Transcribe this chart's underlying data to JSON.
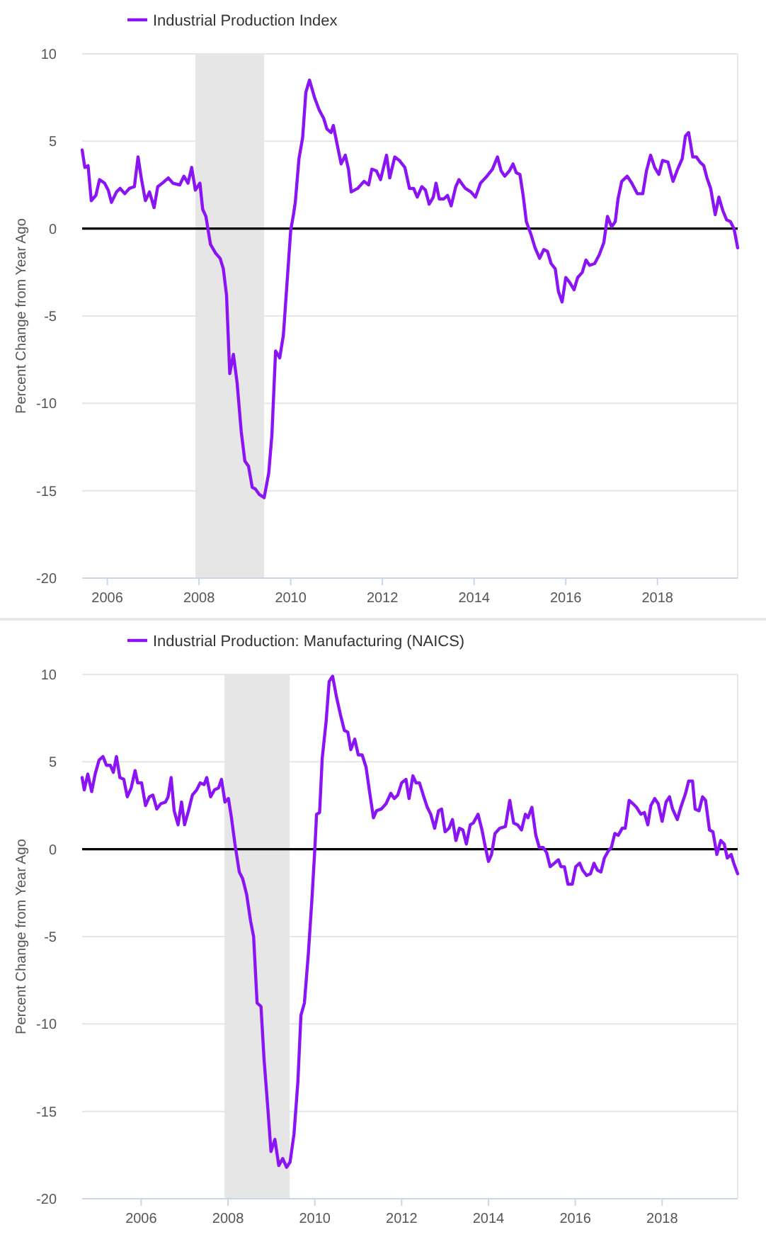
{
  "chart_data": [
    {
      "type": "line",
      "ylabel": "Percent Change from Year Ago",
      "legend": "top",
      "grid": "y",
      "xlim": [
        2005.45,
        2019.75
      ],
      "xticks": [
        2006,
        2008,
        2010,
        2012,
        2014,
        2016,
        2018
      ],
      "ylim": [
        -20,
        10
      ],
      "yticks": [
        -20,
        -15,
        -10,
        -5,
        0,
        5,
        10
      ],
      "ref_lines": [
        {
          "axis": "y",
          "value": 0,
          "color": "#000000"
        }
      ],
      "bands": [
        {
          "axis": "x",
          "from": 2007.92,
          "to": 2009.42,
          "color": "#e6e6e6"
        }
      ],
      "series": [
        {
          "name": "Industrial Production Index",
          "color": "#8b14f5",
          "x": [
            2005.45,
            2005.51,
            2005.58,
            2005.65,
            2005.75,
            2005.83,
            2005.94,
            2006.02,
            2006.09,
            2006.2,
            2006.28,
            2006.38,
            2006.48,
            2006.59,
            2006.67,
            2006.74,
            2006.83,
            2006.92,
            2007.02,
            2007.1,
            2007.2,
            2007.33,
            2007.43,
            2007.58,
            2007.67,
            2007.76,
            2007.84,
            2007.92,
            2008.02,
            2008.08,
            2008.15,
            2008.25,
            2008.36,
            2008.46,
            2008.53,
            2008.6,
            2008.67,
            2008.75,
            2008.83,
            2008.92,
            2009.0,
            2009.08,
            2009.16,
            2009.23,
            2009.31,
            2009.42,
            2009.52,
            2009.59,
            2009.67,
            2009.76,
            2009.84,
            2009.92,
            2010.0,
            2010.06,
            2010.1,
            2010.18,
            2010.26,
            2010.33,
            2010.41,
            2010.52,
            2010.62,
            2010.72,
            2010.79,
            2010.88,
            2010.93,
            2011.03,
            2011.1,
            2011.19,
            2011.26,
            2011.32,
            2011.46,
            2011.6,
            2011.7,
            2011.77,
            2011.87,
            2011.96,
            2012.09,
            2012.16,
            2012.27,
            2012.37,
            2012.49,
            2012.59,
            2012.68,
            2012.76,
            2012.86,
            2012.94,
            2013.02,
            2013.11,
            2013.17,
            2013.24,
            2013.34,
            2013.42,
            2013.5,
            2013.6,
            2013.67,
            2013.81,
            2013.93,
            2014.03,
            2014.14,
            2014.28,
            2014.4,
            2014.51,
            2014.59,
            2014.67,
            2014.77,
            2014.85,
            2014.92,
            2015.0,
            2015.07,
            2015.14,
            2015.25,
            2015.33,
            2015.43,
            2015.52,
            2015.6,
            2015.68,
            2015.77,
            2015.84,
            2015.92,
            2016.0,
            2016.09,
            2016.18,
            2016.26,
            2016.36,
            2016.44,
            2016.52,
            2016.63,
            2016.73,
            2016.83,
            2016.91,
            2017.0,
            2017.08,
            2017.14,
            2017.22,
            2017.34,
            2017.44,
            2017.56,
            2017.68,
            2017.76,
            2017.85,
            2017.94,
            2018.03,
            2018.11,
            2018.23,
            2018.34,
            2018.44,
            2018.54,
            2018.61,
            2018.68,
            2018.77,
            2018.85,
            2018.93,
            2019.01,
            2019.08,
            2019.16,
            2019.26,
            2019.34,
            2019.43,
            2019.51,
            2019.59,
            2019.67,
            2019.75
          ],
          "values": [
            4.5,
            3.5,
            3.6,
            1.6,
            1.9,
            2.8,
            2.6,
            2.2,
            1.5,
            2.1,
            2.3,
            2.0,
            2.3,
            2.4,
            4.1,
            2.9,
            1.6,
            2.1,
            1.2,
            2.4,
            2.6,
            2.9,
            2.6,
            2.5,
            3.0,
            2.6,
            3.5,
            2.2,
            2.6,
            1.1,
            0.7,
            -0.9,
            -1.4,
            -1.7,
            -2.3,
            -3.8,
            -8.3,
            -7.2,
            -8.8,
            -11.6,
            -13.3,
            -13.6,
            -14.8,
            -14.9,
            -15.2,
            -15.4,
            -14.0,
            -11.8,
            -7.0,
            -7.4,
            -6.1,
            -3.1,
            -0.1,
            0.8,
            1.5,
            4.0,
            5.2,
            7.8,
            8.5,
            7.5,
            6.8,
            6.3,
            5.7,
            5.5,
            5.9,
            4.6,
            3.7,
            4.2,
            3.4,
            2.1,
            2.3,
            2.7,
            2.5,
            3.4,
            3.3,
            2.8,
            4.2,
            2.9,
            4.1,
            3.9,
            3.5,
            2.3,
            2.3,
            1.8,
            2.4,
            2.2,
            1.4,
            1.8,
            2.6,
            1.7,
            1.7,
            1.9,
            1.3,
            2.4,
            2.8,
            2.3,
            2.1,
            1.8,
            2.6,
            3.0,
            3.4,
            4.1,
            3.3,
            3.0,
            3.3,
            3.7,
            3.2,
            3.1,
            1.9,
            0.4,
            -0.4,
            -1.1,
            -1.7,
            -1.2,
            -1.3,
            -2.0,
            -2.3,
            -3.6,
            -4.2,
            -2.8,
            -3.1,
            -3.5,
            -2.8,
            -2.5,
            -1.8,
            -2.1,
            -2.0,
            -1.5,
            -0.8,
            0.7,
            0.1,
            0.4,
            1.7,
            2.7,
            3.0,
            2.6,
            2.0,
            2.0,
            3.3,
            4.2,
            3.5,
            3.1,
            3.9,
            3.8,
            2.7,
            3.4,
            4.0,
            5.3,
            5.5,
            4.1,
            4.1,
            3.8,
            3.6,
            2.9,
            2.3,
            0.8,
            1.8,
            1.0,
            0.5,
            0.4,
            0.0,
            -1.1
          ]
        }
      ]
    },
    {
      "type": "line",
      "ylabel": "Percent Change from Year Ago",
      "legend": "top",
      "grid": "y",
      "xlim": [
        2004.64,
        2019.74
      ],
      "xticks": [
        2006,
        2008,
        2010,
        2012,
        2014,
        2016,
        2018
      ],
      "ylim": [
        -20,
        10
      ],
      "yticks": [
        -20,
        -15,
        -10,
        -5,
        0,
        5,
        10
      ],
      "ref_lines": [
        {
          "axis": "y",
          "value": 0,
          "color": "#000000"
        }
      ],
      "bands": [
        {
          "axis": "x",
          "from": 2007.92,
          "to": 2009.42,
          "color": "#e6e6e6"
        }
      ],
      "series": [
        {
          "name": "Industrial Production: Manufacturing (NAICS)",
          "color": "#8b14f5",
          "x": [
            2004.64,
            2004.69,
            2004.77,
            2004.86,
            2004.94,
            2005.03,
            2005.12,
            2005.2,
            2005.29,
            2005.36,
            2005.43,
            2005.51,
            2005.6,
            2005.68,
            2005.77,
            2005.86,
            2005.92,
            2006.01,
            2006.1,
            2006.19,
            2006.27,
            2006.36,
            2006.45,
            2006.56,
            2006.62,
            2006.69,
            2006.76,
            2006.85,
            2006.93,
            2007.0,
            2007.09,
            2007.18,
            2007.28,
            2007.36,
            2007.45,
            2007.51,
            2007.6,
            2007.69,
            2007.78,
            2007.85,
            2007.93,
            2008.01,
            2008.08,
            2008.16,
            2008.26,
            2008.34,
            2008.43,
            2008.52,
            2008.59,
            2008.67,
            2008.76,
            2008.83,
            2008.92,
            2008.99,
            2009.08,
            2009.17,
            2009.26,
            2009.35,
            2009.43,
            2009.52,
            2009.61,
            2009.68,
            2009.76,
            2009.85,
            2009.93,
            2010.0,
            2010.04,
            2010.11,
            2010.17,
            2010.26,
            2010.33,
            2010.41,
            2010.5,
            2010.59,
            2010.68,
            2010.76,
            2010.83,
            2010.92,
            2011.0,
            2011.09,
            2011.18,
            2011.26,
            2011.35,
            2011.42,
            2011.53,
            2011.64,
            2011.75,
            2011.83,
            2011.91,
            2012.0,
            2012.1,
            2012.17,
            2012.26,
            2012.33,
            2012.41,
            2012.51,
            2012.59,
            2012.67,
            2012.76,
            2012.85,
            2012.92,
            2013.0,
            2013.09,
            2013.17,
            2013.25,
            2013.33,
            2013.41,
            2013.49,
            2013.58,
            2013.65,
            2013.76,
            2013.85,
            2013.93,
            2014.0,
            2014.07,
            2014.15,
            2014.26,
            2014.39,
            2014.49,
            2014.58,
            2014.67,
            2014.76,
            2014.85,
            2014.91,
            2015.0,
            2015.09,
            2015.17,
            2015.26,
            2015.34,
            2015.42,
            2015.52,
            2015.61,
            2015.67,
            2015.75,
            2015.83,
            2015.93,
            2016.01,
            2016.1,
            2016.17,
            2016.26,
            2016.35,
            2016.43,
            2016.51,
            2016.59,
            2016.67,
            2016.76,
            2016.83,
            2016.91,
            2016.99,
            2017.08,
            2017.15,
            2017.24,
            2017.33,
            2017.41,
            2017.51,
            2017.59,
            2017.67,
            2017.74,
            2017.83,
            2017.91,
            2018.0,
            2018.09,
            2018.17,
            2018.24,
            2018.35,
            2018.43,
            2018.54,
            2018.61,
            2018.7,
            2018.76,
            2018.85,
            2018.93,
            2019.0,
            2019.09,
            2019.17,
            2019.26,
            2019.35,
            2019.43,
            2019.5,
            2019.59,
            2019.65,
            2019.74
          ],
          "values": [
            4.1,
            3.4,
            4.3,
            3.3,
            4.3,
            5.1,
            5.3,
            4.8,
            4.8,
            4.4,
            5.3,
            4.1,
            4.0,
            3.0,
            3.5,
            4.5,
            3.8,
            3.8,
            2.5,
            3.0,
            3.1,
            2.3,
            2.6,
            2.7,
            3.0,
            4.1,
            2.2,
            1.4,
            2.7,
            1.4,
            2.2,
            3.1,
            3.4,
            3.8,
            3.7,
            4.1,
            3.0,
            3.4,
            3.5,
            4.0,
            2.7,
            2.9,
            1.8,
            0.3,
            -1.3,
            -1.7,
            -2.6,
            -4.1,
            -5.0,
            -8.8,
            -9.0,
            -12.0,
            -14.9,
            -17.3,
            -16.6,
            -18.1,
            -17.7,
            -18.2,
            -17.9,
            -16.3,
            -13.3,
            -9.5,
            -8.8,
            -6.0,
            -3.0,
            0.0,
            2.0,
            2.1,
            5.2,
            7.3,
            9.6,
            9.9,
            8.7,
            7.7,
            6.8,
            6.7,
            5.7,
            6.3,
            5.4,
            5.4,
            4.7,
            3.3,
            1.8,
            2.2,
            2.3,
            2.6,
            3.2,
            2.9,
            3.1,
            3.8,
            4.0,
            2.9,
            4.2,
            3.8,
            3.8,
            3.0,
            2.4,
            2.0,
            1.2,
            2.2,
            2.3,
            1.0,
            1.2,
            1.7,
            0.5,
            1.2,
            1.1,
            0.3,
            1.4,
            1.5,
            2.0,
            1.1,
            0.1,
            -0.7,
            -0.3,
            0.9,
            1.2,
            1.3,
            2.8,
            1.5,
            1.4,
            1.1,
            2.0,
            1.8,
            2.4,
            0.8,
            0.1,
            0.1,
            -0.2,
            -1.0,
            -0.8,
            -0.6,
            -1.0,
            -1.0,
            -2.0,
            -2.0,
            -1.0,
            -0.8,
            -1.2,
            -1.5,
            -1.4,
            -0.8,
            -1.2,
            -1.3,
            -0.5,
            -0.1,
            0.1,
            0.9,
            0.8,
            1.2,
            1.2,
            2.8,
            2.6,
            2.4,
            2.0,
            2.1,
            1.4,
            2.5,
            2.9,
            2.6,
            1.6,
            2.7,
            3.0,
            2.3,
            1.7,
            2.4,
            3.2,
            3.9,
            3.9,
            2.3,
            2.2,
            3.0,
            2.8,
            1.1,
            1.0,
            -0.3,
            0.5,
            0.3,
            -0.5,
            -0.3,
            -0.8,
            -1.4
          ]
        }
      ]
    }
  ]
}
